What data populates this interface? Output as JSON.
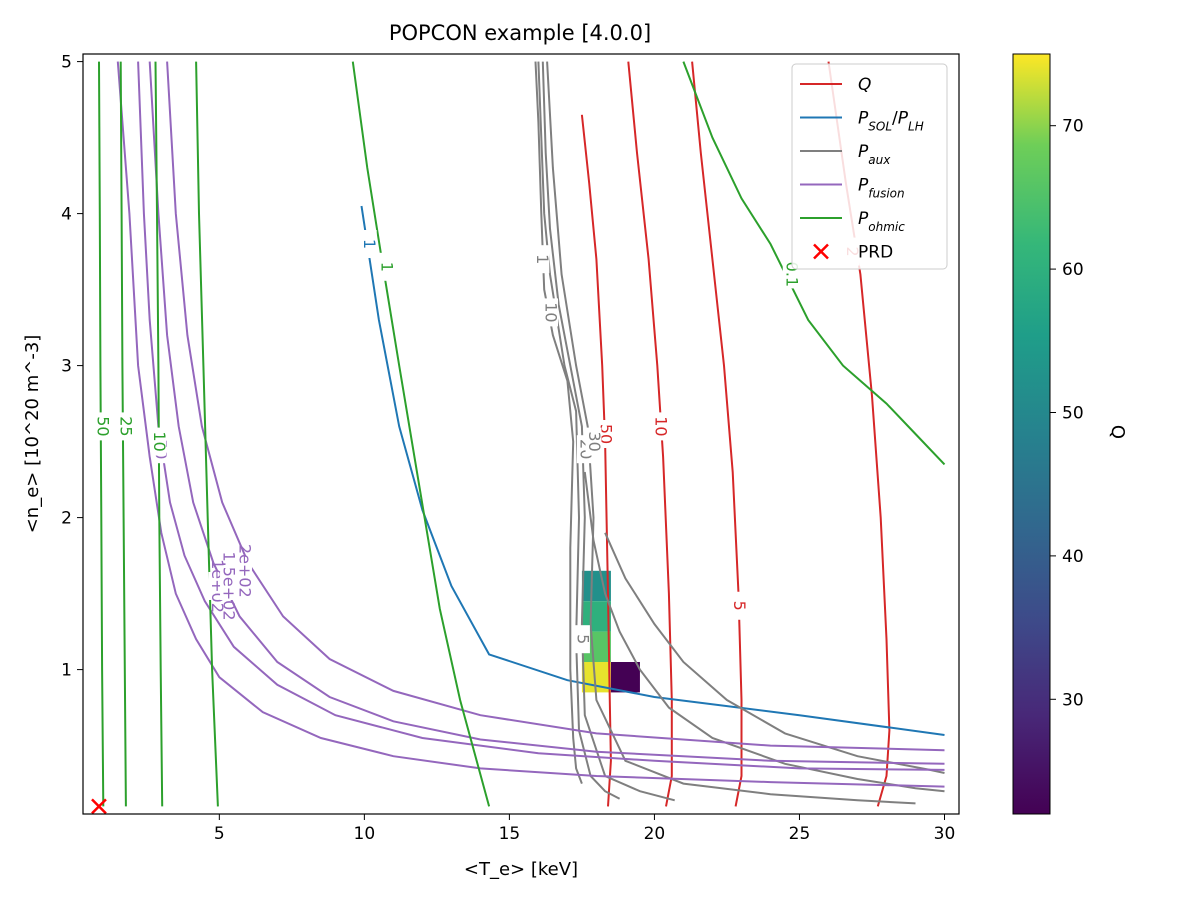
{
  "chart_data": {
    "type": "contour",
    "title": "POPCON example [4.0.0]",
    "xlabel": "<T_e>  [keV]",
    "ylabel": "<n_e> [10^20 m^-3]",
    "xlim": [
      0.3,
      30.5
    ],
    "ylim": [
      0.05,
      5.05
    ],
    "xticks": [
      "5",
      "10",
      "15",
      "20",
      "25",
      "30"
    ],
    "yticks": [
      "1",
      "2",
      "3",
      "4",
      "5"
    ],
    "legend": {
      "position": "upper right",
      "entries": [
        {
          "label": "Q",
          "color": "#d62728",
          "kind": "line"
        },
        {
          "label": "P_SOL/P_LH",
          "color": "#1f77b4",
          "kind": "line"
        },
        {
          "label": "P_aux",
          "color": "#7f7f7f",
          "kind": "line"
        },
        {
          "label": "P_fusion",
          "color": "#9467bd",
          "kind": "line"
        },
        {
          "label": "P_ohmic",
          "color": "#2ca02c",
          "kind": "line"
        },
        {
          "label": "PRD",
          "color": "#ff0000",
          "kind": "marker"
        }
      ]
    },
    "colorbar": {
      "label": "Q",
      "range": [
        22,
        75
      ],
      "ticks": [
        "30",
        "40",
        "50",
        "60",
        "70"
      ],
      "colormap": "viridis"
    },
    "series": [
      {
        "group": "Q",
        "level": "50",
        "color": "#d62728",
        "label_at": [
          18.3,
          2.55
        ],
        "points": [
          [
            17.5,
            4.65
          ],
          [
            17.75,
            4.2
          ],
          [
            18.0,
            3.7
          ],
          [
            18.2,
            3.0
          ],
          [
            18.3,
            2.5
          ],
          [
            18.4,
            1.5
          ],
          [
            18.45,
            0.9
          ],
          [
            18.5,
            0.4
          ],
          [
            18.4,
            0.1
          ]
        ]
      },
      {
        "group": "Q",
        "level": "10",
        "color": "#d62728",
        "label_at": [
          20.2,
          2.6
        ],
        "points": [
          [
            19.1,
            5.0
          ],
          [
            19.4,
            4.4
          ],
          [
            19.8,
            3.7
          ],
          [
            20.1,
            3.0
          ],
          [
            20.3,
            2.4
          ],
          [
            20.5,
            1.5
          ],
          [
            20.6,
            0.8
          ],
          [
            20.6,
            0.3
          ],
          [
            20.4,
            0.1
          ]
        ]
      },
      {
        "group": "Q",
        "level": "5",
        "color": "#d62728",
        "label_at": [
          22.9,
          1.42
        ],
        "points": [
          [
            21.3,
            5.0
          ],
          [
            21.6,
            4.4
          ],
          [
            22.0,
            3.7
          ],
          [
            22.4,
            3.0
          ],
          [
            22.7,
            2.3
          ],
          [
            22.9,
            1.5
          ],
          [
            23.0,
            0.8
          ],
          [
            23.0,
            0.3
          ],
          [
            22.8,
            0.1
          ]
        ]
      },
      {
        "group": "Q",
        "level": "2",
        "color": "#d62728",
        "label_at": [
          26.8,
          3.75
        ],
        "points": [
          [
            26.0,
            5.0
          ],
          [
            26.6,
            4.2
          ],
          [
            27.1,
            3.6
          ],
          [
            27.5,
            2.8
          ],
          [
            27.8,
            2.0
          ],
          [
            28.0,
            1.2
          ],
          [
            28.1,
            0.6
          ],
          [
            28.0,
            0.3
          ],
          [
            27.7,
            0.1
          ]
        ]
      },
      {
        "group": "PSOL",
        "level": "1",
        "color": "#1f77b4",
        "label_at": [
          10.15,
          3.8
        ],
        "points": [
          [
            9.9,
            4.05
          ],
          [
            10.5,
            3.3
          ],
          [
            11.2,
            2.6
          ],
          [
            12.0,
            2.05
          ],
          [
            13.0,
            1.55
          ],
          [
            14.3,
            1.1
          ],
          [
            17.0,
            0.93
          ],
          [
            20.0,
            0.82
          ],
          [
            25.0,
            0.7
          ],
          [
            30.0,
            0.57
          ]
        ]
      },
      {
        "group": "Paux",
        "level": "1",
        "color": "#7f7f7f",
        "label_at": [
          16.1,
          3.7
        ],
        "points": [
          [
            15.9,
            5.0
          ],
          [
            16.0,
            4.6
          ],
          [
            16.1,
            4.0
          ],
          [
            16.2,
            3.5
          ],
          [
            16.5,
            3.2
          ],
          [
            17.0,
            2.9
          ],
          [
            17.2,
            2.5
          ],
          [
            17.1,
            1.8
          ],
          [
            17.1,
            1.0
          ],
          [
            17.2,
            0.55
          ],
          [
            17.3,
            0.35
          ],
          [
            17.5,
            0.25
          ]
        ]
      },
      {
        "group": "Paux",
        "level": "10",
        "color": "#7f7f7f",
        "label_at": [
          16.4,
          3.35
        ],
        "points": [
          [
            16.0,
            5.0
          ],
          [
            16.1,
            4.5
          ],
          [
            16.2,
            4.0
          ],
          [
            16.4,
            3.6
          ],
          [
            16.9,
            3.0
          ],
          [
            17.3,
            2.7
          ],
          [
            17.4,
            2.0
          ],
          [
            17.3,
            1.2
          ],
          [
            17.4,
            0.6
          ],
          [
            17.8,
            0.3
          ],
          [
            18.3,
            0.2
          ],
          [
            18.8,
            0.15
          ]
        ]
      },
      {
        "group": "Paux",
        "level": "20",
        "color": "#7f7f7f",
        "label_at": [
          17.6,
          2.45
        ],
        "points": [
          [
            16.15,
            5.0
          ],
          [
            16.25,
            4.4
          ],
          [
            16.4,
            3.9
          ],
          [
            16.7,
            3.4
          ],
          [
            17.2,
            2.9
          ],
          [
            17.5,
            2.6
          ],
          [
            17.6,
            2.0
          ],
          [
            17.5,
            1.3
          ],
          [
            17.6,
            0.7
          ],
          [
            18.3,
            0.3
          ],
          [
            19.5,
            0.2
          ],
          [
            20.7,
            0.14
          ]
        ]
      },
      {
        "group": "Paux",
        "level": "30",
        "color": "#7f7f7f",
        "label_at": [
          17.9,
          2.5
        ],
        "points": [
          [
            16.3,
            5.0
          ],
          [
            16.5,
            4.3
          ],
          [
            16.8,
            3.6
          ],
          [
            17.3,
            3.0
          ],
          [
            17.7,
            2.6
          ],
          [
            17.9,
            2.0
          ],
          [
            17.8,
            1.3
          ],
          [
            18.0,
            0.8
          ],
          [
            19.0,
            0.4
          ],
          [
            21.0,
            0.25
          ],
          [
            24.0,
            0.18
          ],
          [
            27.0,
            0.14
          ],
          [
            29.0,
            0.12
          ]
        ]
      },
      {
        "group": "Paux",
        "level": "5",
        "color": "#7f7f7f",
        "label_at": [
          17.5,
          1.2
        ],
        "points": [
          [
            17.6,
            2.3
          ],
          [
            17.9,
            1.85
          ],
          [
            18.3,
            1.5
          ],
          [
            18.8,
            1.25
          ],
          [
            19.5,
            1.0
          ],
          [
            20.5,
            0.75
          ],
          [
            22.0,
            0.55
          ],
          [
            24.5,
            0.38
          ],
          [
            27.0,
            0.28
          ],
          [
            29.0,
            0.22
          ],
          [
            30.0,
            0.2
          ]
        ]
      },
      {
        "group": "Paux",
        "level": "",
        "color": "#7f7f7f",
        "label_at": null,
        "points": [
          [
            18.3,
            1.9
          ],
          [
            19.0,
            1.6
          ],
          [
            20.0,
            1.3
          ],
          [
            21.0,
            1.05
          ],
          [
            22.5,
            0.8
          ],
          [
            24.5,
            0.58
          ],
          [
            27.0,
            0.43
          ],
          [
            29.5,
            0.34
          ],
          [
            30.0,
            0.32
          ]
        ]
      },
      {
        "group": "Pfusion",
        "level": "50",
        "color": "#9467bd",
        "label_at": [
          2.95,
          2.45
        ],
        "points": [
          [
            2.2,
            5.0
          ],
          [
            2.4,
            4.0
          ],
          [
            2.6,
            3.3
          ],
          [
            2.9,
            2.6
          ],
          [
            3.3,
            2.1
          ],
          [
            3.8,
            1.75
          ],
          [
            4.5,
            1.45
          ],
          [
            5.5,
            1.15
          ],
          [
            7.0,
            0.9
          ],
          [
            9.0,
            0.7
          ],
          [
            12.0,
            0.55
          ],
          [
            16.0,
            0.45
          ],
          [
            20.0,
            0.4
          ],
          [
            25.0,
            0.35
          ],
          [
            30.0,
            0.34
          ]
        ]
      },
      {
        "group": "Pfusion",
        "level": "1e+02",
        "color": "#9467bd",
        "label_at": [
          4.9,
          1.55
        ],
        "points": [
          [
            1.5,
            5.0
          ],
          [
            1.9,
            4.0
          ],
          [
            2.2,
            3.0
          ],
          [
            2.6,
            2.4
          ],
          [
            3.0,
            1.9
          ],
          [
            3.5,
            1.5
          ],
          [
            4.2,
            1.2
          ],
          [
            5.0,
            0.95
          ],
          [
            6.5,
            0.72
          ],
          [
            8.5,
            0.55
          ],
          [
            11.0,
            0.43
          ],
          [
            14.0,
            0.35
          ],
          [
            18.0,
            0.3
          ],
          [
            24.0,
            0.26
          ],
          [
            30.0,
            0.23
          ]
        ]
      },
      {
        "group": "Pfusion",
        "level": "1.5e+02",
        "color": "#9467bd",
        "label_at": [
          5.3,
          1.55
        ],
        "points": [
          [
            2.6,
            5.0
          ],
          [
            2.9,
            4.0
          ],
          [
            3.2,
            3.2
          ],
          [
            3.6,
            2.6
          ],
          [
            4.1,
            2.1
          ],
          [
            4.8,
            1.7
          ],
          [
            5.7,
            1.35
          ],
          [
            7.0,
            1.05
          ],
          [
            8.8,
            0.82
          ],
          [
            11.0,
            0.66
          ],
          [
            14.0,
            0.54
          ],
          [
            18.0,
            0.46
          ],
          [
            24.0,
            0.4
          ],
          [
            30.0,
            0.38
          ]
        ]
      },
      {
        "group": "Pfusion",
        "level": "2e+02",
        "color": "#9467bd",
        "label_at": [
          5.85,
          1.65
        ],
        "points": [
          [
            3.2,
            5.0
          ],
          [
            3.5,
            4.0
          ],
          [
            3.9,
            3.2
          ],
          [
            4.4,
            2.6
          ],
          [
            5.1,
            2.1
          ],
          [
            6.0,
            1.7
          ],
          [
            7.2,
            1.35
          ],
          [
            8.8,
            1.07
          ],
          [
            11.0,
            0.86
          ],
          [
            14.0,
            0.7
          ],
          [
            18.0,
            0.58
          ],
          [
            24.0,
            0.5
          ],
          [
            30.0,
            0.47
          ]
        ]
      },
      {
        "group": "Pohmic",
        "level": "50",
        "color": "#2ca02c",
        "label_at": [
          0.95,
          2.6
        ],
        "points": [
          [
            0.85,
            5.0
          ],
          [
            0.88,
            4.0
          ],
          [
            0.9,
            3.0
          ],
          [
            0.93,
            2.0
          ],
          [
            0.96,
            1.0
          ],
          [
            1.0,
            0.1
          ]
        ]
      },
      {
        "group": "Pohmic",
        "level": "25",
        "color": "#2ca02c",
        "label_at": [
          1.75,
          2.6
        ],
        "points": [
          [
            1.6,
            5.0
          ],
          [
            1.63,
            4.0
          ],
          [
            1.66,
            3.0
          ],
          [
            1.7,
            2.0
          ],
          [
            1.74,
            1.0
          ],
          [
            1.78,
            0.1
          ]
        ]
      },
      {
        "group": "Pohmic",
        "level": "10",
        "color": "#2ca02c",
        "label_at": [
          2.9,
          2.5
        ],
        "points": [
          [
            2.8,
            5.0
          ],
          [
            2.85,
            4.0
          ],
          [
            2.9,
            3.0
          ],
          [
            2.93,
            2.0
          ],
          [
            2.98,
            1.0
          ],
          [
            3.03,
            0.1
          ]
        ]
      },
      {
        "group": "Pohmic",
        "level": "",
        "color": "#2ca02c",
        "label_at": null,
        "points": [
          [
            4.2,
            5.0
          ],
          [
            4.3,
            4.0
          ],
          [
            4.45,
            3.0
          ],
          [
            4.6,
            2.0
          ],
          [
            4.75,
            1.0
          ],
          [
            4.95,
            0.1
          ]
        ]
      },
      {
        "group": "Pohmic",
        "level": "1",
        "color": "#2ca02c",
        "label_at": [
          10.75,
          3.65
        ],
        "points": [
          [
            9.6,
            5.0
          ],
          [
            10.1,
            4.3
          ],
          [
            10.6,
            3.7
          ],
          [
            11.2,
            3.0
          ],
          [
            11.9,
            2.2
          ],
          [
            12.6,
            1.4
          ],
          [
            13.3,
            0.8
          ],
          [
            14.3,
            0.1
          ]
        ]
      },
      {
        "group": "Pohmic",
        "level": "0.1",
        "color": "#2ca02c",
        "label_at": [
          24.7,
          3.6
        ],
        "points": [
          [
            21.0,
            5.0
          ],
          [
            22.0,
            4.5
          ],
          [
            23.0,
            4.1
          ],
          [
            24.0,
            3.8
          ],
          [
            25.3,
            3.3
          ],
          [
            26.5,
            3.0
          ],
          [
            28.0,
            2.75
          ],
          [
            29.0,
            2.55
          ],
          [
            30.0,
            2.35
          ]
        ]
      }
    ],
    "heatmap_cells": [
      {
        "x0": 17.5,
        "x1": 18.5,
        "y0": 1.45,
        "y1": 1.65,
        "q": 52
      },
      {
        "x0": 17.5,
        "x1": 18.5,
        "y0": 1.25,
        "y1": 1.45,
        "q": 60
      },
      {
        "x0": 17.5,
        "x1": 18.5,
        "y0": 1.05,
        "y1": 1.25,
        "q": 66
      },
      {
        "x0": 17.5,
        "x1": 18.5,
        "y0": 0.85,
        "y1": 1.05,
        "q": 74
      },
      {
        "x0": 18.5,
        "x1": 19.5,
        "y0": 0.85,
        "y1": 1.05,
        "q": 22
      }
    ],
    "prd_marker": {
      "x": 0.85,
      "y": 0.1
    }
  }
}
